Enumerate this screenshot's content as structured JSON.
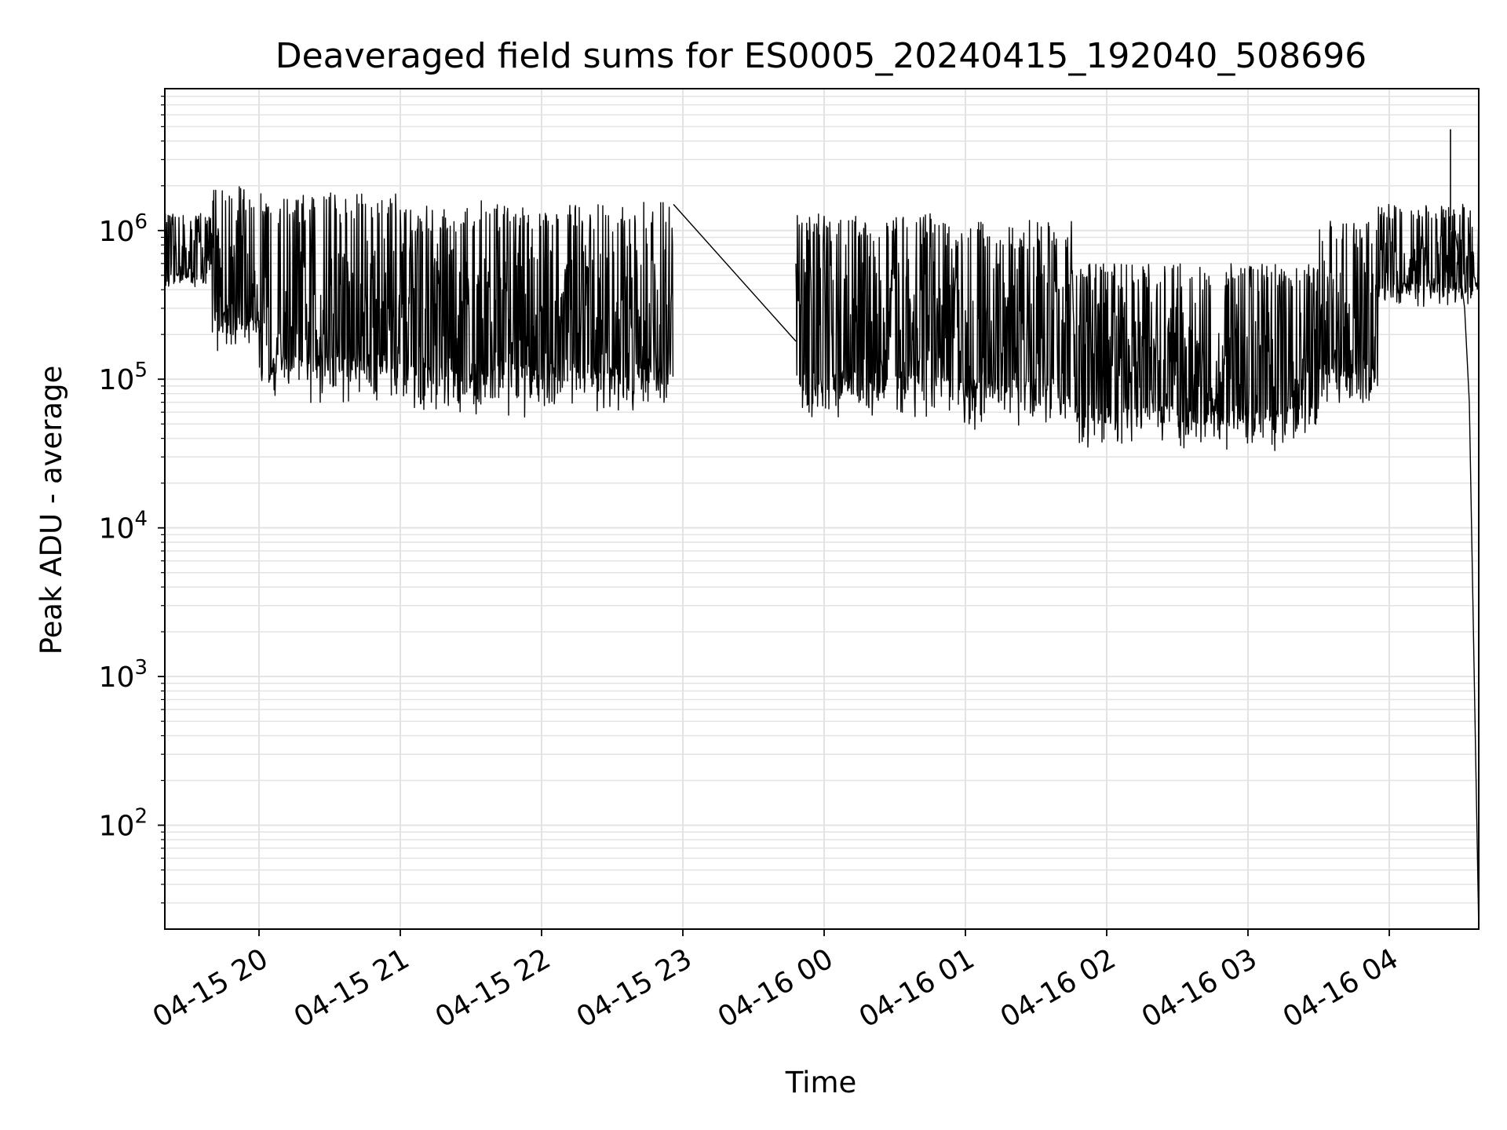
{
  "chart_data": {
    "type": "line",
    "title": "Deaveraged field sums for ES0005_20240415_192040_508696",
    "xlabel": "Time",
    "ylabel": "Peak ADU - average",
    "yscale": "log",
    "ylim": [
      20,
      9000000
    ],
    "xlim": [
      "2024-04-15 19:20",
      "2024-04-16 04:38"
    ],
    "grid": true,
    "line_color": "#000000",
    "grid_color": "#e3e3e3",
    "x_ticks": [
      {
        "label": "04-15 20",
        "value": "2024-04-15 20:00"
      },
      {
        "label": "04-15 21",
        "value": "2024-04-15 21:00"
      },
      {
        "label": "04-15 22",
        "value": "2024-04-15 22:00"
      },
      {
        "label": "04-15 23",
        "value": "2024-04-15 23:00"
      },
      {
        "label": "04-16 00",
        "value": "2024-04-16 00:00"
      },
      {
        "label": "04-16 01",
        "value": "2024-04-16 01:00"
      },
      {
        "label": "04-16 02",
        "value": "2024-04-16 02:00"
      },
      {
        "label": "04-16 03",
        "value": "2024-04-16 03:00"
      },
      {
        "label": "04-16 04",
        "value": "2024-04-16 04:00"
      }
    ],
    "y_ticks": [
      {
        "base": "10",
        "exp": "2",
        "value": 100
      },
      {
        "base": "10",
        "exp": "3",
        "value": 1000
      },
      {
        "base": "10",
        "exp": "4",
        "value": 10000
      },
      {
        "base": "10",
        "exp": "5",
        "value": 100000
      },
      {
        "base": "10",
        "exp": "6",
        "value": 1000000
      }
    ],
    "series": [
      {
        "segments": [
          {
            "start": "2024-04-15 19:20",
            "end": "2024-04-15 22:56",
            "phases": [
              {
                "start": "2024-04-15 19:20",
                "end": "2024-04-15 19:40",
                "low": 400000,
                "high": 1300000
              },
              {
                "start": "2024-04-15 19:40",
                "end": "2024-04-15 20:00",
                "low": 150000,
                "high": 2000000
              },
              {
                "start": "2024-04-15 20:00",
                "end": "2024-04-15 21:00",
                "low": 65000,
                "high": 1800000
              },
              {
                "start": "2024-04-15 21:00",
                "end": "2024-04-15 22:56",
                "low": 55000,
                "high": 1600000
              }
            ]
          },
          {
            "start": "2024-04-15 23:48",
            "end": "2024-04-16 04:38",
            "phases": [
              {
                "start": "2024-04-15 23:48",
                "end": "2024-04-16 00:45",
                "low": 50000,
                "high": 1300000
              },
              {
                "start": "2024-04-16 00:45",
                "end": "2024-04-16 01:45",
                "low": 45000,
                "high": 1200000
              },
              {
                "start": "2024-04-16 01:45",
                "end": "2024-04-16 03:30",
                "low": 32000,
                "high": 600000
              },
              {
                "start": "2024-04-16 03:30",
                "end": "2024-04-16 03:55",
                "low": 60000,
                "high": 1200000
              },
              {
                "start": "2024-04-16 03:55",
                "end": "2024-04-16 04:28",
                "low": 300000,
                "high": 1500000
              }
            ]
          }
        ],
        "gap_connector": [
          {
            "x": "2024-04-15 22:56",
            "y": 1500000
          },
          {
            "x": "2024-04-15 23:48",
            "y": 180000
          }
        ],
        "peak": {
          "x": "2024-04-16 04:26",
          "y": 4800000
        },
        "tail": [
          {
            "x": "2024-04-16 04:28",
            "y": 1000000
          },
          {
            "x": "2024-04-16 04:32",
            "y": 300000
          },
          {
            "x": "2024-04-16 04:34",
            "y": 70000
          },
          {
            "x": "2024-04-16 04:38",
            "y": 20
          }
        ]
      }
    ]
  }
}
